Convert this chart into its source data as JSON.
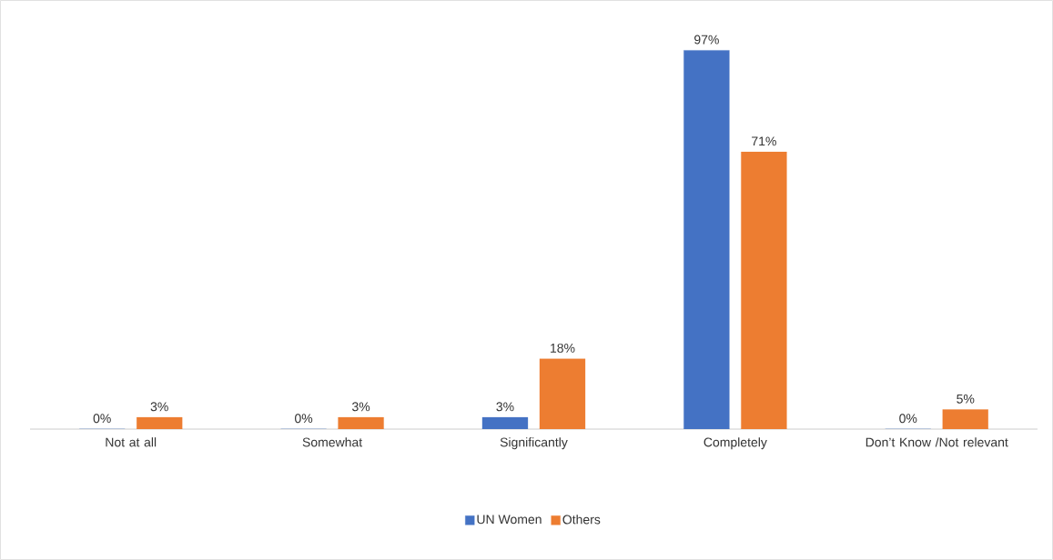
{
  "chart_data": {
    "type": "bar",
    "categories": [
      "Not at all",
      "Somewhat",
      "Significantly",
      "Completely",
      "Don’t Know /Not relevant"
    ],
    "series": [
      {
        "name": "UN Women",
        "color": "#4472c4",
        "values": [
          0,
          0,
          3,
          97,
          0
        ],
        "value_labels": [
          "0%",
          "0%",
          "3%",
          "97%",
          "0%"
        ]
      },
      {
        "name": "Others",
        "color": "#ed7d31",
        "values": [
          3,
          3,
          18,
          71,
          5
        ],
        "value_labels": [
          "3%",
          "3%",
          "18%",
          "71%",
          "5%"
        ]
      }
    ],
    "legend": "bottom"
  }
}
